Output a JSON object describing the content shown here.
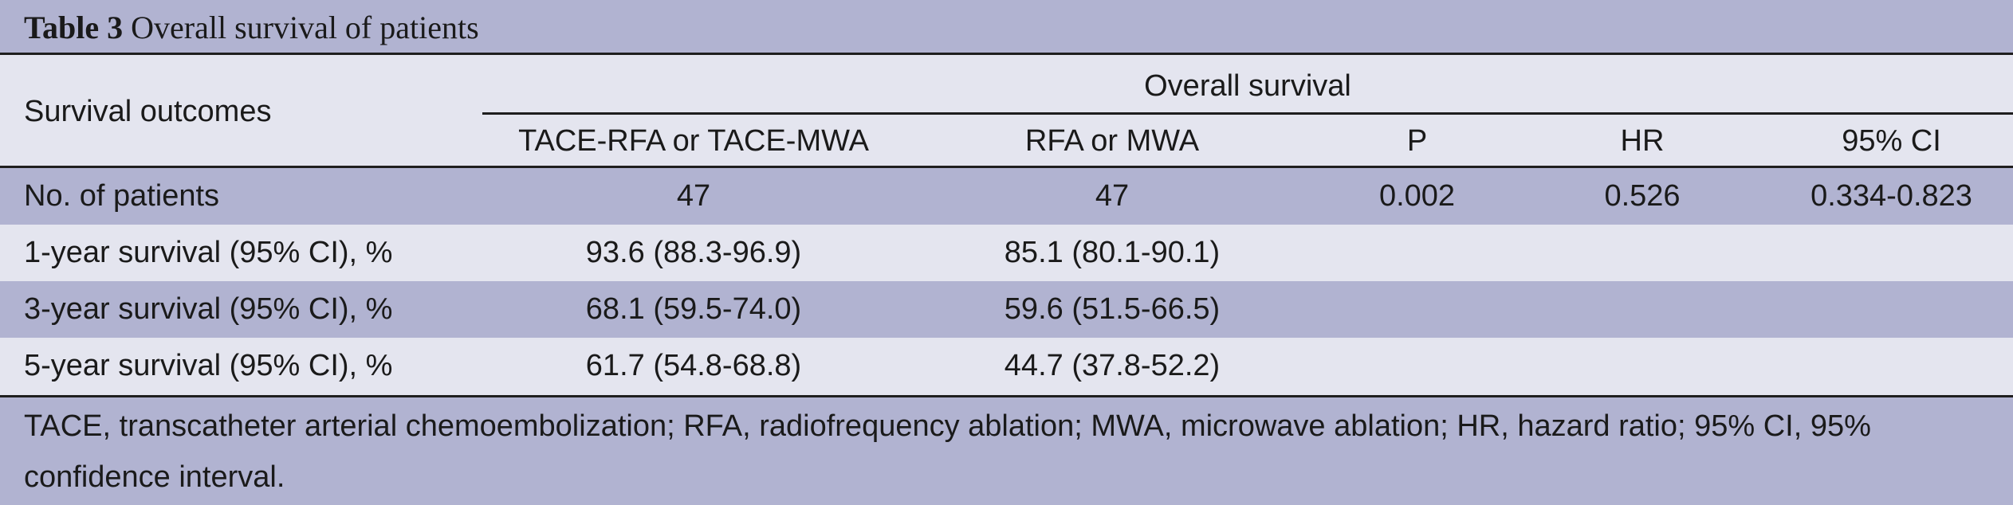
{
  "table": {
    "title_bold": "Table 3",
    "title_rest": " Overall survival of patients",
    "row_header": "Survival outcomes",
    "group_header": "Overall survival",
    "columns": [
      "TACE-RFA or TACE-MWA",
      "RFA or MWA",
      "P",
      "HR",
      "95% CI"
    ],
    "rows": [
      [
        "No. of patients",
        "47",
        "47",
        "0.002",
        "0.526",
        "0.334-0.823"
      ],
      [
        "1-year survival (95% CI), %",
        "93.6 (88.3-96.9)",
        "85.1 (80.1-90.1)",
        "",
        "",
        ""
      ],
      [
        "3-year survival (95% CI), %",
        "68.1 (59.5-74.0)",
        "59.6 (51.5-66.5)",
        "",
        "",
        ""
      ],
      [
        "5-year survival (95% CI), %",
        "61.7 (54.8-68.8)",
        "44.7 (37.8-52.2)",
        "",
        "",
        ""
      ]
    ],
    "footnote": "TACE, transcatheter arterial chemoembolization; RFA, radiofrequency ablation; MWA, microwave ablation; HR, hazard ratio; 95% CI, 95% confidence interval."
  }
}
